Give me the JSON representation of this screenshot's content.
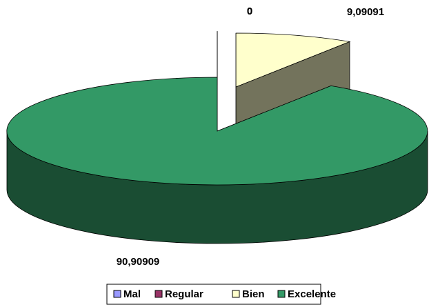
{
  "chart_data": {
    "type": "pie3d",
    "categories": [
      "Mal",
      "Regular",
      "Bien",
      "Excelente"
    ],
    "values": [
      0,
      0,
      9.09091,
      90.90909
    ],
    "value_labels": [
      "0",
      "0",
      "9,09091",
      "90,90909"
    ],
    "colors": [
      "#9999ff",
      "#993366",
      "#ffffcc",
      "#339966"
    ],
    "legend": "bottom"
  }
}
